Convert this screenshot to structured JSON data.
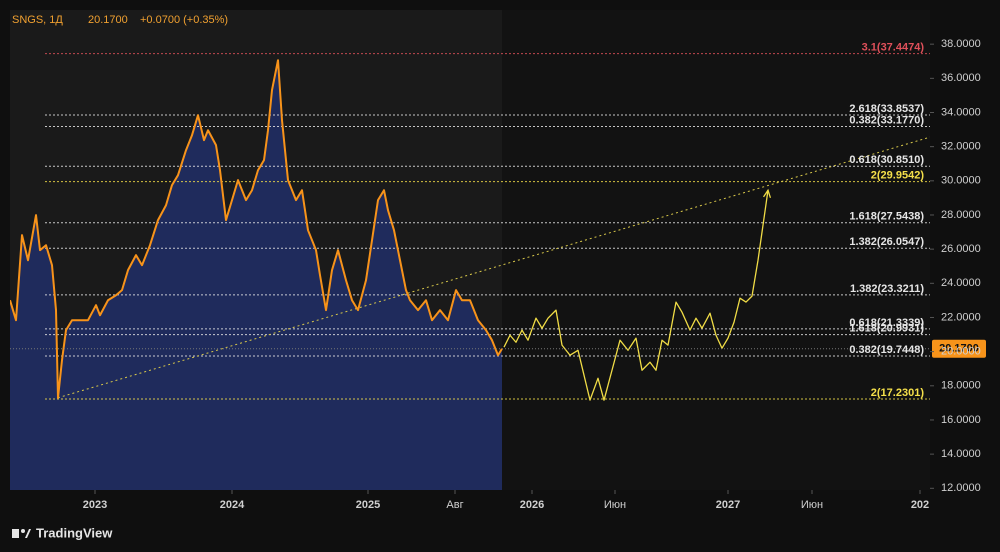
{
  "header": {
    "symbol": "SNGS, 1Д",
    "price": "20.1700",
    "change": "+0.0700 (+0.35%)"
  },
  "brand": "TradingView",
  "chart_data": {
    "type": "area",
    "xlim": [
      0,
      460
    ],
    "ylim": [
      11.9,
      40
    ],
    "xticks": [
      {
        "value": 42.5,
        "label": "2023"
      },
      {
        "value": 111,
        "label": "2024"
      },
      {
        "value": 179,
        "label": "2025"
      },
      {
        "value": 222.5,
        "label": "Авг"
      },
      {
        "value": 261,
        "label": "2026"
      },
      {
        "value": 302.5,
        "label": "Июн"
      },
      {
        "value": 359,
        "label": "2027"
      },
      {
        "value": 401,
        "label": "Июн"
      },
      {
        "value": 455,
        "label": "202"
      }
    ],
    "yticks": [
      {
        "value": 12,
        "label": "12.0000"
      },
      {
        "value": 14,
        "label": "14.0000"
      },
      {
        "value": 16,
        "label": "16.0000"
      },
      {
        "value": 18,
        "label": "18.0000"
      },
      {
        "value": 20,
        "label": "20.0000"
      },
      {
        "value": 22,
        "label": "22.0000"
      },
      {
        "value": 24,
        "label": "24.0000"
      },
      {
        "value": 26,
        "label": "26.0000"
      },
      {
        "value": 28,
        "label": "28.0000"
      },
      {
        "value": 30,
        "label": "30.0000"
      },
      {
        "value": 32,
        "label": "32.0000"
      },
      {
        "value": 34,
        "label": "34.0000"
      },
      {
        "value": 36,
        "label": "36.0000"
      },
      {
        "value": 38,
        "label": "38.0000"
      }
    ],
    "series": [
      {
        "color": "#f7931a",
        "x": [
          0,
          3,
          6,
          9,
          13,
          15,
          18,
          21,
          23,
          24,
          26,
          28,
          31,
          35,
          39,
          43,
          45,
          49,
          53,
          56,
          59,
          63,
          66,
          70,
          74,
          78,
          81,
          84,
          88,
          91,
          94,
          97,
          99,
          103,
          105,
          108,
          111,
          114,
          118,
          121,
          124,
          127,
          129,
          131,
          134,
          136,
          139,
          143,
          146,
          149,
          153,
          155,
          158,
          161,
          164,
          168,
          171,
          174,
          178,
          181,
          184,
          187,
          189,
          192,
          195,
          198,
          200,
          204,
          208,
          211,
          215,
          219,
          223,
          226,
          230,
          234,
          238,
          241,
          244,
          246
        ],
        "values": [
          23.01,
          21.84,
          26.82,
          25.35,
          27.99,
          25.94,
          26.23,
          25.06,
          22.43,
          17.3,
          19.5,
          21.26,
          21.84,
          21.84,
          21.84,
          22.72,
          22.13,
          23.01,
          23.3,
          23.6,
          24.77,
          25.65,
          25.06,
          26.23,
          27.7,
          28.57,
          29.75,
          30.33,
          31.79,
          32.67,
          33.84,
          32.38,
          32.96,
          32.09,
          30.62,
          27.7,
          28.87,
          30.04,
          28.87,
          29.45,
          30.62,
          31.21,
          32.96,
          35.31,
          37.06,
          33.55,
          30.04,
          28.87,
          29.45,
          27.11,
          25.94,
          24.48,
          22.43,
          24.77,
          25.94,
          24.18,
          23.01,
          22.43,
          24.18,
          26.52,
          28.87,
          29.45,
          28.28,
          27.11,
          25.35,
          23.6,
          23.01,
          22.43,
          23.01,
          21.84,
          22.43,
          21.84,
          23.6,
          23.01,
          23.01,
          21.84,
          21.26,
          20.67,
          19.79,
          20.17
        ]
      },
      {
        "color": "#f0dc46",
        "x": [
          247,
          250,
          253,
          256,
          259,
          263,
          266,
          269,
          273,
          276,
          280,
          284,
          287,
          290,
          294,
          297,
          301,
          305,
          309,
          313,
          316,
          320,
          323,
          326,
          329,
          333,
          336,
          340,
          343,
          346,
          350,
          353,
          356,
          359,
          362,
          365,
          368,
          371,
          374,
          379
        ],
        "values": [
          20.26,
          20.96,
          20.55,
          21.26,
          20.67,
          21.96,
          21.37,
          21.96,
          22.43,
          20.38,
          19.79,
          20.08,
          18.62,
          17.16,
          18.44,
          17.16,
          18.91,
          20.67,
          20.08,
          20.79,
          18.91,
          19.38,
          18.91,
          20.67,
          20.38,
          22.9,
          22.31,
          21.26,
          21.96,
          21.37,
          22.25,
          20.96,
          20.2,
          20.79,
          21.72,
          23.13,
          22.9,
          23.25,
          25.35,
          29.45
        ]
      }
    ],
    "trend": {
      "color": "#d8c84a",
      "x": [
        24,
        460
      ],
      "values": [
        17.3,
        32.56
      ]
    },
    "levels": [
      {
        "label": "3.1(37.4474)",
        "value": 37.4474,
        "color": "#e0505a"
      },
      {
        "label": "2.618(33.8537)",
        "value": 33.8537,
        "color": "#e6e6e6"
      },
      {
        "label": "0.382(33.1770)",
        "value": 33.177,
        "color": "#e6e6e6"
      },
      {
        "label": "0.618(30.8510)",
        "value": 30.851,
        "color": "#e6e6e6"
      },
      {
        "label": "2(29.9542)",
        "value": 29.9542,
        "color": "#f5e04a"
      },
      {
        "label": "1.618(27.5438)",
        "value": 27.5438,
        "color": "#e6e6e6"
      },
      {
        "label": "1.382(26.0547)",
        "value": 26.0547,
        "color": "#e6e6e6"
      },
      {
        "label": "1.382(23.3211)",
        "value": 23.3211,
        "color": "#e6e6e6"
      },
      {
        "label": "0.618(21.3339)",
        "value": 21.3339,
        "color": "#e6e6e6"
      },
      {
        "label": "1.618(20.9931)",
        "value": 20.9931,
        "color": "#e6e6e6"
      },
      {
        "label": "0.382(19.7448)",
        "value": 19.7448,
        "color": "#e6e6e6"
      },
      {
        "label": "2(17.2301)",
        "value": 17.2301,
        "color": "#f5e04a"
      }
    ],
    "last_price": {
      "value": 20.17,
      "label": "20.1700",
      "color": "#f7931a"
    }
  }
}
